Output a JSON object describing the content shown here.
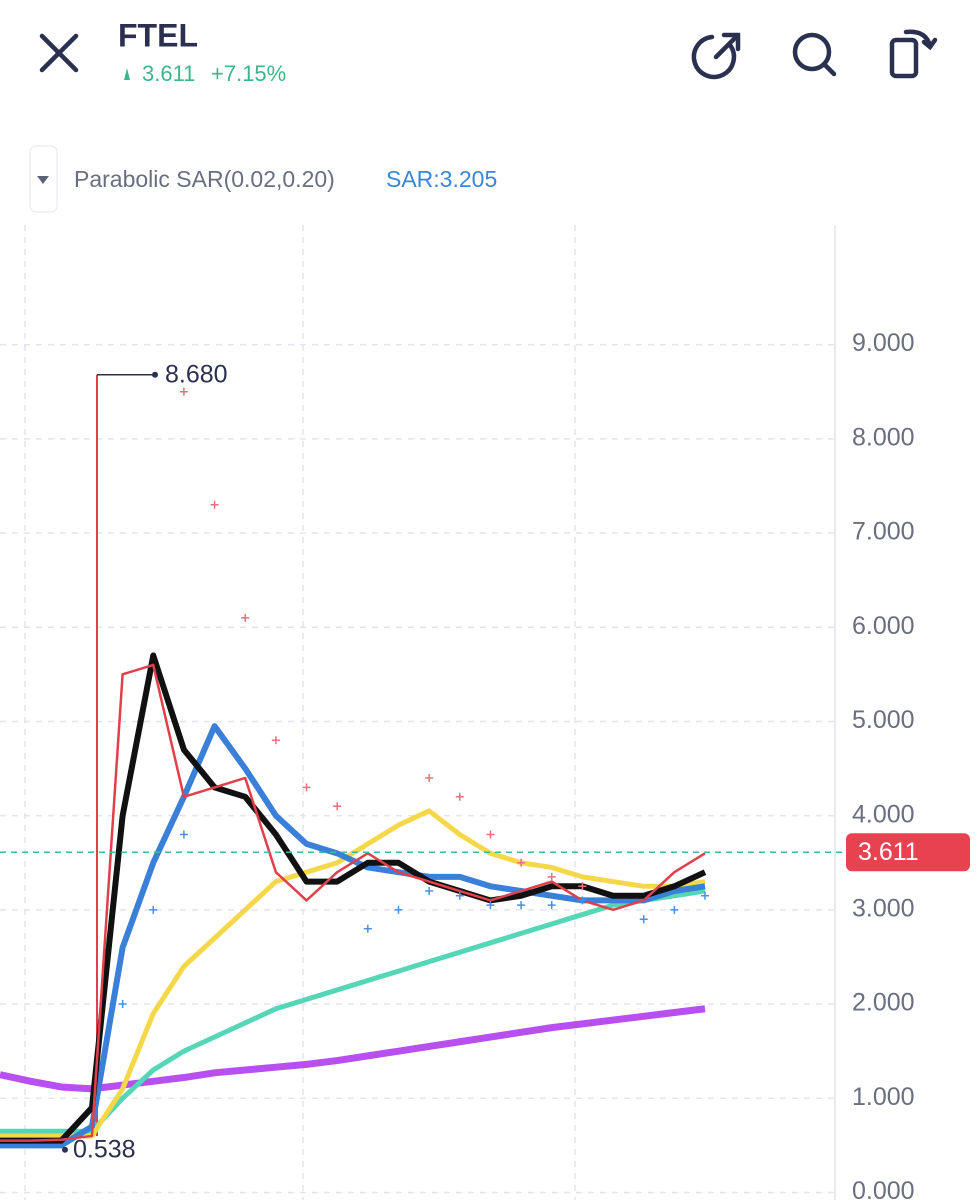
{
  "header": {
    "title": "FTEL",
    "price": "3.611",
    "change": "+7.15%"
  },
  "indicator": {
    "name": "Parabolic SAR(0.02,0.20)",
    "value": "SAR:3.205"
  },
  "chart_data": {
    "type": "line",
    "categories": [
      null,
      null,
      null,
      null,
      null,
      null,
      null,
      null,
      null,
      null,
      null,
      null,
      null,
      null,
      null,
      null,
      null,
      null,
      null,
      null,
      null,
      null,
      null,
      null
    ],
    "ylim": [
      -0.08,
      10.27
    ],
    "yticks": [
      {
        "value": 0,
        "label": "0.000"
      },
      {
        "value": 1,
        "label": "1.000"
      },
      {
        "value": 2,
        "label": "2.000"
      },
      {
        "value": 3,
        "label": "3.000"
      },
      {
        "value": 4,
        "label": "4.000"
      },
      {
        "value": 5,
        "label": "5.000"
      },
      {
        "value": 6,
        "label": "6.000"
      },
      {
        "value": 7,
        "label": "7.000"
      },
      {
        "value": 8,
        "label": "8.000"
      },
      {
        "value": 9,
        "label": "9.000"
      }
    ],
    "grid": true,
    "series": [
      {
        "color": "#b84ff0",
        "width": 7,
        "values": [
          1.25,
          1.18,
          1.12,
          1.1,
          1.14,
          1.18,
          1.22,
          1.27,
          1.3,
          1.33,
          1.36,
          1.4,
          1.45,
          1.5,
          1.55,
          1.6,
          1.65,
          1.7,
          1.75,
          1.79,
          1.83,
          1.87,
          1.91,
          1.95
        ]
      },
      {
        "color": "#55d6b6",
        "width": 5,
        "values": [
          0.65,
          0.65,
          0.65,
          0.65,
          1.0,
          1.3,
          1.5,
          1.65,
          1.8,
          1.95,
          2.05,
          2.15,
          2.25,
          2.35,
          2.45,
          2.55,
          2.65,
          2.75,
          2.85,
          2.95,
          3.05,
          3.1,
          3.15,
          3.2
        ]
      },
      {
        "color": "#f5d84a",
        "width": 5,
        "values": [
          0.6,
          0.6,
          0.6,
          0.6,
          1.1,
          1.9,
          2.4,
          2.7,
          3.0,
          3.3,
          3.4,
          3.5,
          3.7,
          3.9,
          4.05,
          3.8,
          3.6,
          3.5,
          3.45,
          3.35,
          3.3,
          3.25,
          3.25,
          3.3
        ]
      },
      {
        "color": "#3a7fd8",
        "width": 6,
        "values": [
          0.5,
          0.5,
          0.5,
          0.7,
          2.6,
          3.5,
          4.2,
          4.95,
          4.5,
          4.0,
          3.7,
          3.6,
          3.45,
          3.4,
          3.35,
          3.35,
          3.25,
          3.2,
          3.15,
          3.1,
          3.1,
          3.1,
          3.2,
          3.25
        ]
      },
      {
        "color": "#111111",
        "width": 6,
        "values": [
          0.55,
          0.55,
          0.55,
          0.9,
          4.0,
          5.7,
          4.7,
          4.3,
          4.2,
          3.8,
          3.3,
          3.3,
          3.5,
          3.5,
          3.3,
          3.2,
          3.1,
          3.15,
          3.25,
          3.25,
          3.15,
          3.15,
          3.25,
          3.4
        ]
      },
      {
        "color": "#e0404a",
        "width": 2.5,
        "values": [
          0.55,
          0.55,
          0.56,
          0.6,
          5.5,
          5.6,
          4.2,
          4.3,
          4.4,
          3.4,
          3.1,
          3.4,
          3.6,
          3.4,
          3.3,
          3.2,
          3.1,
          3.2,
          3.3,
          3.1,
          3.0,
          3.1,
          3.4,
          3.6
        ]
      },
      {
        "color": "#e8717a",
        "marker": "plus",
        "values": [
          null,
          null,
          null,
          null,
          null,
          null,
          8.5,
          7.3,
          6.1,
          4.8,
          4.3,
          4.1,
          null,
          null,
          4.4,
          4.2,
          3.8,
          3.5,
          3.35,
          3.25,
          null,
          null,
          null,
          null
        ]
      },
      {
        "color": "#4a90e2",
        "marker": "plus",
        "values": [
          null,
          null,
          null,
          null,
          2.0,
          3.0,
          3.8,
          null,
          null,
          null,
          null,
          null,
          2.8,
          3.0,
          3.2,
          3.15,
          3.05,
          3.05,
          3.05,
          3.1,
          null,
          2.9,
          3.0,
          3.15
        ]
      }
    ],
    "high": 8.68,
    "high_label": "8.680",
    "low": 0.538,
    "low_label": "0.538",
    "last_price": 3.611
  }
}
